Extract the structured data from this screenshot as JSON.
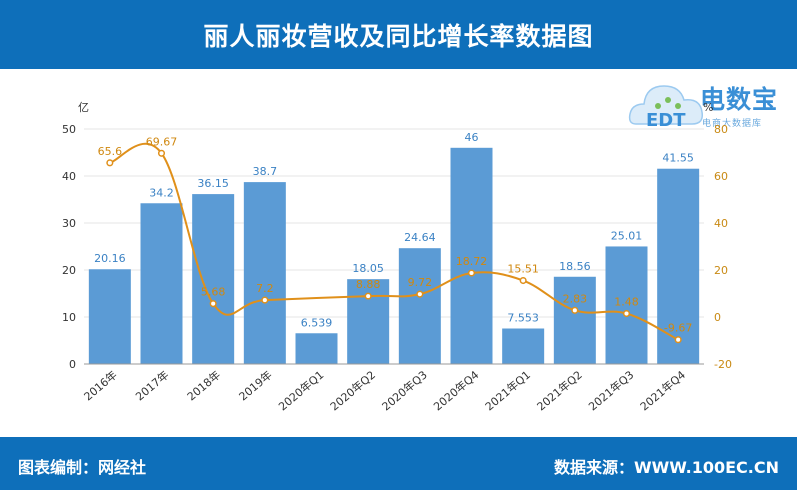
{
  "header": {
    "title": "丽人丽妆营收及同比增长率数据图"
  },
  "footer": {
    "left": "图表编制：网经社",
    "right": "数据来源：WWW.100EC.CN"
  },
  "logo": {
    "brand": "电数宝",
    "sub": "电商大数据库",
    "cloud_text": "EDT"
  },
  "chart_data": {
    "type": "bar",
    "categories": [
      "2016年",
      "2017年",
      "2018年",
      "2019年",
      "2020年Q1",
      "2020年Q2",
      "2020年Q3",
      "2020年Q4",
      "2021年Q1",
      "2021年Q2",
      "2021年Q3",
      "2021年Q4"
    ],
    "series": [
      {
        "type": "bar",
        "axis": "left",
        "color": "#5b9bd5",
        "values": [
          20.16,
          34.2,
          36.15,
          38.7,
          6.539,
          18.05,
          24.64,
          46,
          7.553,
          18.56,
          25.01,
          41.55
        ],
        "labels": [
          "20.16",
          "34.2",
          "36.15",
          "38.7",
          "6.539",
          "18.05",
          "24.64",
          "46",
          "7.553",
          "18.56",
          "25.01",
          "41.55"
        ]
      },
      {
        "type": "line",
        "axis": "right",
        "color": "#e0901a",
        "values": [
          65.6,
          69.67,
          5.68,
          7.2,
          null,
          8.88,
          9.72,
          18.72,
          15.51,
          2.83,
          1.48,
          -9.67
        ],
        "labels": [
          "65.6",
          "69.67",
          "5.68",
          "7.2",
          "",
          "8.88",
          "9.72",
          "18.72",
          "15.51",
          "2.83",
          "1.48",
          "-9.67"
        ]
      }
    ],
    "ylabel_left": "亿",
    "ylabel_right": "%",
    "ylim_left": [
      0,
      50
    ],
    "ylim_right": [
      -20,
      80
    ],
    "yticks_left": [
      "0",
      "10",
      "20",
      "30",
      "40",
      "50"
    ],
    "yticks_right": [
      "-20",
      "0",
      "20",
      "40",
      "60",
      "80"
    ],
    "grid": true
  }
}
